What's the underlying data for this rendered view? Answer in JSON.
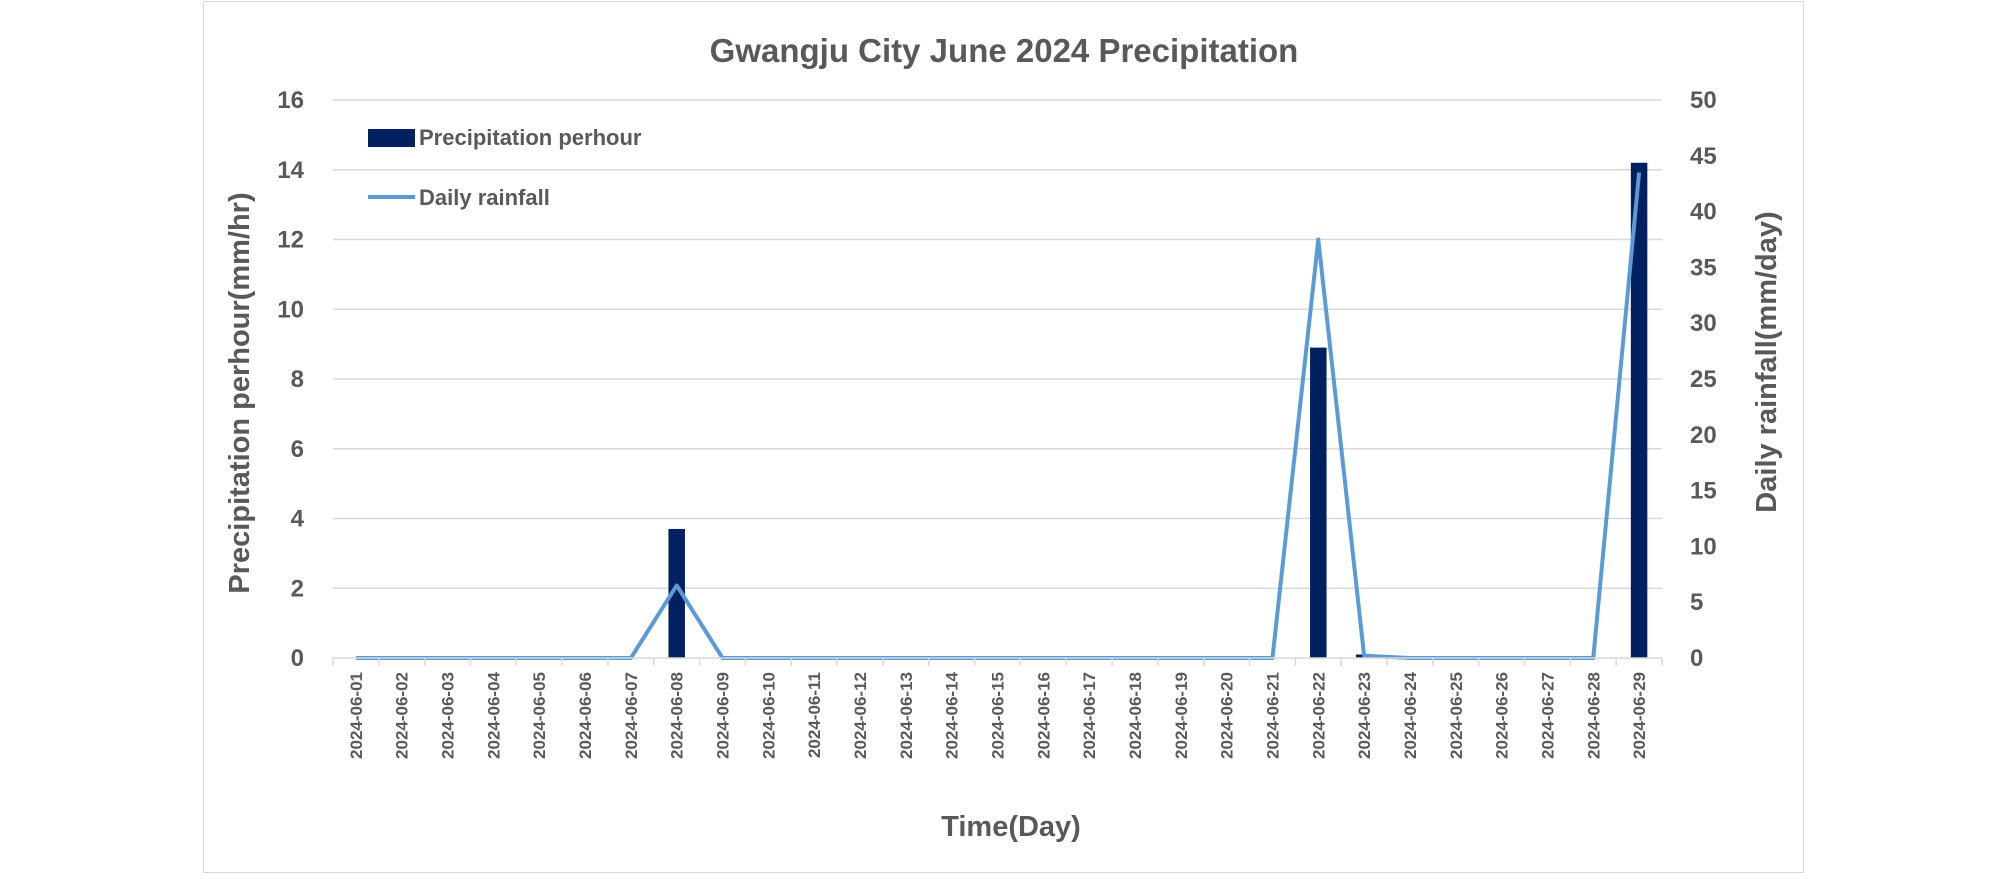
{
  "chart_data": {
    "type": "bar+line",
    "title": "Gwangju City June 2024 Precipitation",
    "xlabel": "Time(Day)",
    "ylabel_left": "Precipitation  perhour(mm/hr)",
    "ylabel_right": "Daily rainfall(mm/day)",
    "ylim_left": [
      0,
      16
    ],
    "ylim_right": [
      0,
      50
    ],
    "yticks_left": [
      "0",
      "2",
      "4",
      "6",
      "8",
      "10",
      "12",
      "14",
      "16"
    ],
    "yticks_right": [
      "0",
      "5",
      "10",
      "15",
      "20",
      "25",
      "30",
      "35",
      "40",
      "45",
      "50"
    ],
    "grid": true,
    "legend_position": "top-left",
    "categories": [
      "2024-06-01",
      "2024-06-02",
      "2024-06-03",
      "2024-06-04",
      "2024-06-05",
      "2024-06-06",
      "2024-06-07",
      "2024-06-08",
      "2024-06-09",
      "2024-06-10",
      "2024-06-11",
      "2024-06-12",
      "2024-06-13",
      "2024-06-14",
      "2024-06-15",
      "2024-06-16",
      "2024-06-17",
      "2024-06-18",
      "2024-06-19",
      "2024-06-20",
      "2024-06-21",
      "2024-06-22",
      "2024-06-23",
      "2024-06-24",
      "2024-06-25",
      "2024-06-26",
      "2024-06-27",
      "2024-06-28",
      "2024-06-29"
    ],
    "series": [
      {
        "name": "Precipitation perhour",
        "kind": "bar",
        "axis": "left",
        "color": "#002060",
        "values": [
          0,
          0,
          0,
          0,
          0,
          0,
          0,
          3.7,
          0,
          0,
          0,
          0,
          0,
          0,
          0,
          0,
          0,
          0,
          0,
          0,
          0,
          8.9,
          0.1,
          0,
          0,
          0,
          0,
          0,
          14.2
        ]
      },
      {
        "name": "Daily rainfall",
        "kind": "line",
        "axis": "right",
        "color": "#5b9bd5",
        "values": [
          0,
          0,
          0,
          0,
          0,
          0,
          0,
          6.5,
          0,
          0,
          0,
          0,
          0,
          0,
          0,
          0,
          0,
          0,
          0,
          0,
          0,
          37.5,
          0.2,
          0,
          0,
          0,
          0,
          0,
          43.5
        ]
      }
    ]
  }
}
